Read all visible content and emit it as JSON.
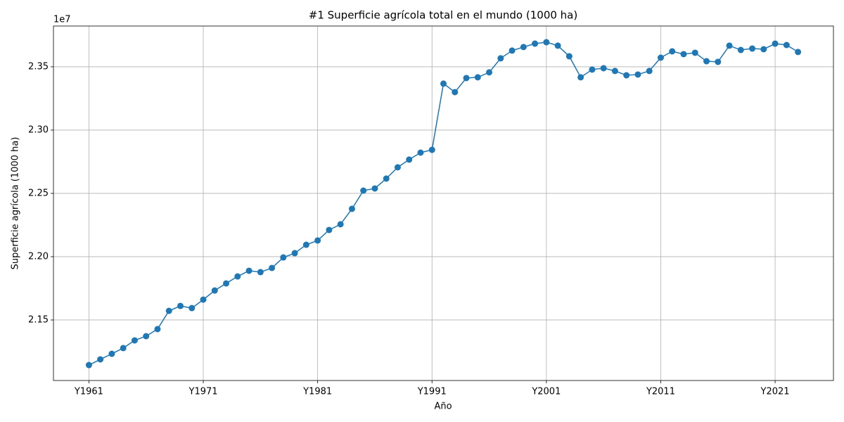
{
  "chart_data": {
    "type": "line",
    "title": "#1 Superficie agrícola total en el mundo (1000 ha)",
    "x_label": "Año",
    "y_label": "Superficie agrícola (1000 ha)",
    "y_offset_label": "1e7",
    "categories": [
      "Y1961",
      null,
      null,
      null,
      null,
      null,
      null,
      null,
      null,
      null,
      "Y1971",
      null,
      null,
      null,
      null,
      null,
      null,
      null,
      null,
      null,
      "Y1981",
      null,
      null,
      null,
      null,
      null,
      null,
      null,
      null,
      null,
      "Y1991",
      null,
      null,
      null,
      null,
      null,
      null,
      null,
      null,
      null,
      "Y2001",
      null,
      null,
      null,
      null,
      null,
      null,
      null,
      null,
      null,
      "Y2011",
      null,
      null,
      null,
      null,
      null,
      null,
      null,
      null,
      null,
      "Y2021",
      null,
      null
    ],
    "series": [
      {
        "color": "#1f77b4",
        "values": [
          21144000,
          21189000,
          21233000,
          21278000,
          21339000,
          21372000,
          21428000,
          21572000,
          21611000,
          21594000,
          21661000,
          21733000,
          21789000,
          21844000,
          21889000,
          21878000,
          21911000,
          21994000,
          22028000,
          22094000,
          22128000,
          22211000,
          22256000,
          22378000,
          22522000,
          22539000,
          22617000,
          22706000,
          22767000,
          22822000,
          22844000,
          23367000,
          23300000,
          23411000,
          23417000,
          23456000,
          23567000,
          23628000,
          23656000,
          23683000,
          23694000,
          23667000,
          23583000,
          23417000,
          23478000,
          23489000,
          23467000,
          23433000,
          23439000,
          23467000,
          23572000,
          23622000,
          23600000,
          23611000,
          23544000,
          23539000,
          23667000,
          23633000,
          23644000,
          23639000,
          23683000,
          23672000,
          23617000
        ]
      }
    ],
    "ylim": [
      21022000,
      23822000
    ],
    "yticks": [
      {
        "value": 21500000,
        "label": "2.15"
      },
      {
        "value": 22000000,
        "label": "2.20"
      },
      {
        "value": 22500000,
        "label": "2.25"
      },
      {
        "value": 23000000,
        "label": "2.30"
      },
      {
        "value": 23500000,
        "label": "2.35"
      }
    ],
    "grid": true,
    "markers": true
  }
}
